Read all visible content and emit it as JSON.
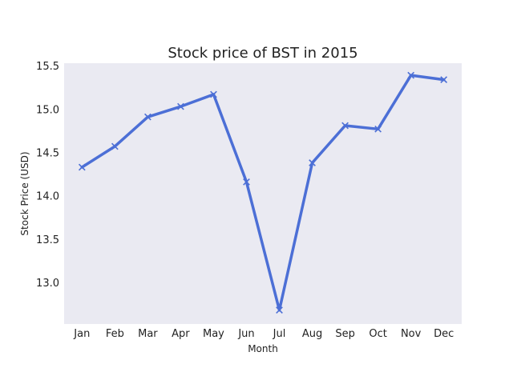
{
  "chart_data": {
    "type": "line",
    "title": "Stock price of BST in 2015",
    "xlabel": "Month",
    "ylabel": "Stock Price (USD)",
    "categories": [
      "Jan",
      "Feb",
      "Mar",
      "Apr",
      "May",
      "Jun",
      "Jul",
      "Aug",
      "Sep",
      "Oct",
      "Nov",
      "Dec"
    ],
    "series": [
      {
        "values": [
          14.33,
          14.57,
          14.91,
          15.03,
          15.17,
          14.16,
          12.68,
          14.38,
          14.81,
          14.77,
          15.39,
          15.34
        ],
        "color": "#4c6fd6",
        "marker": "x"
      }
    ],
    "yticks": [
      "13.0",
      "13.5",
      "14.0",
      "14.5",
      "15.0",
      "15.5"
    ],
    "ylim": [
      12.52,
      15.53
    ],
    "grid": false,
    "background_color": "#eaeaf2"
  }
}
